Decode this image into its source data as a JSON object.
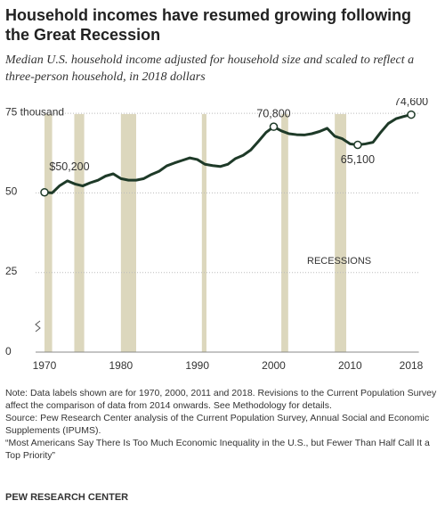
{
  "chart_data": {
    "type": "line",
    "title": "Household incomes have resumed growing following the Great Recession",
    "subtitle": "Median U.S. household income adjusted for household size and scaled to reflect a three-person household, in 2018 dollars",
    "x": [
      1970,
      1971,
      1972,
      1973,
      1974,
      1975,
      1976,
      1977,
      1978,
      1979,
      1980,
      1981,
      1982,
      1983,
      1984,
      1985,
      1986,
      1987,
      1988,
      1989,
      1990,
      1991,
      1992,
      1993,
      1994,
      1995,
      1996,
      1997,
      1998,
      1999,
      2000,
      2001,
      2002,
      2003,
      2004,
      2005,
      2006,
      2007,
      2008,
      2009,
      2010,
      2011,
      2012,
      2013,
      2014,
      2015,
      2016,
      2017,
      2018
    ],
    "series": [
      {
        "color": "#1e3a28",
        "values": [
          50.2,
          50.0,
          52.3,
          53.8,
          52.8,
          52.2,
          53.2,
          54.0,
          55.3,
          56.0,
          54.5,
          54.0,
          54.0,
          54.5,
          55.8,
          56.8,
          58.5,
          59.4,
          60.2,
          61.0,
          60.5,
          59.0,
          58.6,
          58.3,
          59.0,
          60.8,
          61.8,
          63.5,
          66.2,
          69.0,
          70.8,
          69.5,
          68.6,
          68.3,
          68.2,
          68.6,
          69.3,
          70.3,
          67.8,
          67.0,
          65.4,
          65.1,
          65.4,
          65.9,
          69.0,
          71.8,
          73.3,
          74.0,
          74.6
        ],
        "value_labels": [
          "$50,200",
          null,
          null,
          null,
          null,
          null,
          null,
          null,
          null,
          null,
          null,
          null,
          null,
          null,
          null,
          null,
          null,
          null,
          null,
          null,
          null,
          null,
          null,
          null,
          null,
          null,
          null,
          null,
          null,
          null,
          "70,800",
          null,
          null,
          null,
          null,
          null,
          null,
          null,
          null,
          null,
          null,
          "65,100",
          null,
          null,
          null,
          null,
          null,
          null,
          "74,600"
        ]
      }
    ],
    "recessions_label": "RECESSIONS",
    "recessions": [
      [
        1970,
        1971
      ],
      [
        1973.9,
        1975.2
      ],
      [
        1980,
        1982
      ],
      [
        1990.6,
        1991.2
      ],
      [
        2001,
        2001.9
      ],
      [
        2008,
        2009.5
      ]
    ],
    "recession_color": "#dcd7bd",
    "xlim": [
      1969.5,
      2019
    ],
    "xticks": [
      1970,
      1980,
      1990,
      2000,
      2010,
      2018
    ],
    "ylim": [
      0,
      77
    ],
    "yticks": [
      0,
      25,
      50,
      {
        "value": 75,
        "label": "75 thousand"
      }
    ],
    "grid": true,
    "notes": [
      "Note: Data labels shown are for 1970, 2000, 2011 and 2018. Revisions to the Current Population Survey affect the comparison of data from 2014 onwards. See Methodology for details.",
      "Source: Pew Research Center analysis of the Current Population Survey, Annual Social and Economic Supplements (IPUMS).",
      "“Most Americans Say There Is Too Much Economic Inequality in the U.S., but Fewer Than Half Call It a Top Priority”"
    ],
    "footer": "PEW RESEARCH CENTER"
  }
}
